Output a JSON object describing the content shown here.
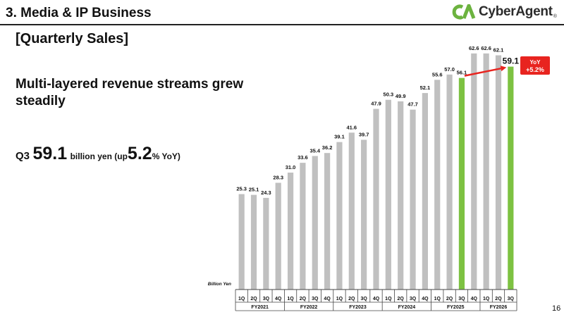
{
  "header": {
    "title": "3. Media & IP Business",
    "logo_text": "CyberAgent",
    "logo_reg": "®"
  },
  "section_label": "[Quarterly Sales]",
  "headline": "Multi-layered revenue streams grew steadily",
  "kpi": {
    "quarter": "Q3",
    "value": "59.1",
    "unit_text": "billion yen (up",
    "pct": "5.2",
    "pct_suffix": "% YoY)"
  },
  "page_number": "16",
  "colors": {
    "bar": "#c0c0c0",
    "bar_highlight": "#7dc242",
    "arrow": "#e8241f",
    "callout_bg": "#e8241f",
    "logo_green": "#6cb33f"
  },
  "chart_data": {
    "type": "bar",
    "unit_label": "Billion Yen",
    "ylim": [
      0,
      65
    ],
    "categories": [
      "FY2021 1Q",
      "FY2021 2Q",
      "FY2021 3Q",
      "FY2021 4Q",
      "FY2022 1Q",
      "FY2022 2Q",
      "FY2022 3Q",
      "FY2022 4Q",
      "FY2023 1Q",
      "FY2023 2Q",
      "FY2023 3Q",
      "FY2023 4Q",
      "FY2024 1Q",
      "FY2024 2Q",
      "FY2024 3Q",
      "FY2024 4Q",
      "FY2025 1Q",
      "FY2025 2Q",
      "FY2025 3Q",
      "FY2025 4Q",
      "FY2026 1Q",
      "FY2026 2Q",
      "FY2026 3Q"
    ],
    "quarter_labels": [
      "1Q",
      "2Q",
      "3Q",
      "4Q",
      "1Q",
      "2Q",
      "3Q",
      "4Q",
      "1Q",
      "2Q",
      "3Q",
      "4Q",
      "1Q",
      "2Q",
      "3Q",
      "4Q",
      "1Q",
      "2Q",
      "3Q",
      "4Q",
      "1Q",
      "2Q",
      "3Q"
    ],
    "fiscal_years": [
      {
        "label": "FY2021",
        "quarters": 4
      },
      {
        "label": "FY2022",
        "quarters": 4
      },
      {
        "label": "FY2023",
        "quarters": 4
      },
      {
        "label": "FY2024",
        "quarters": 4
      },
      {
        "label": "FY2025",
        "quarters": 4
      },
      {
        "label": "FY2026",
        "quarters": 3
      }
    ],
    "values": [
      25.3,
      25.1,
      24.3,
      28.3,
      31.0,
      33.6,
      35.4,
      36.2,
      39.1,
      41.6,
      39.7,
      47.9,
      50.3,
      49.9,
      47.7,
      52.1,
      55.6,
      57.0,
      56.1,
      62.6,
      62.6,
      62.1,
      59.1
    ],
    "value_labels": [
      "25.3",
      "25.1",
      "24.3",
      "28.3",
      "31.0",
      "33.6",
      "35.4",
      "36.2",
      "39.1",
      "41.6",
      "39.7",
      "47.9",
      "50.3",
      "49.9",
      "47.7",
      "52.1",
      "55.6",
      "57.0",
      "56.1",
      "62.6",
      "62.6",
      "62.1",
      "59.1"
    ],
    "highlight": [
      18,
      22
    ],
    "emphasized_label_index": 22,
    "yoy": {
      "from": 18,
      "to": 22,
      "label_line1": "YoY",
      "label_line2": "+5.2%"
    }
  }
}
